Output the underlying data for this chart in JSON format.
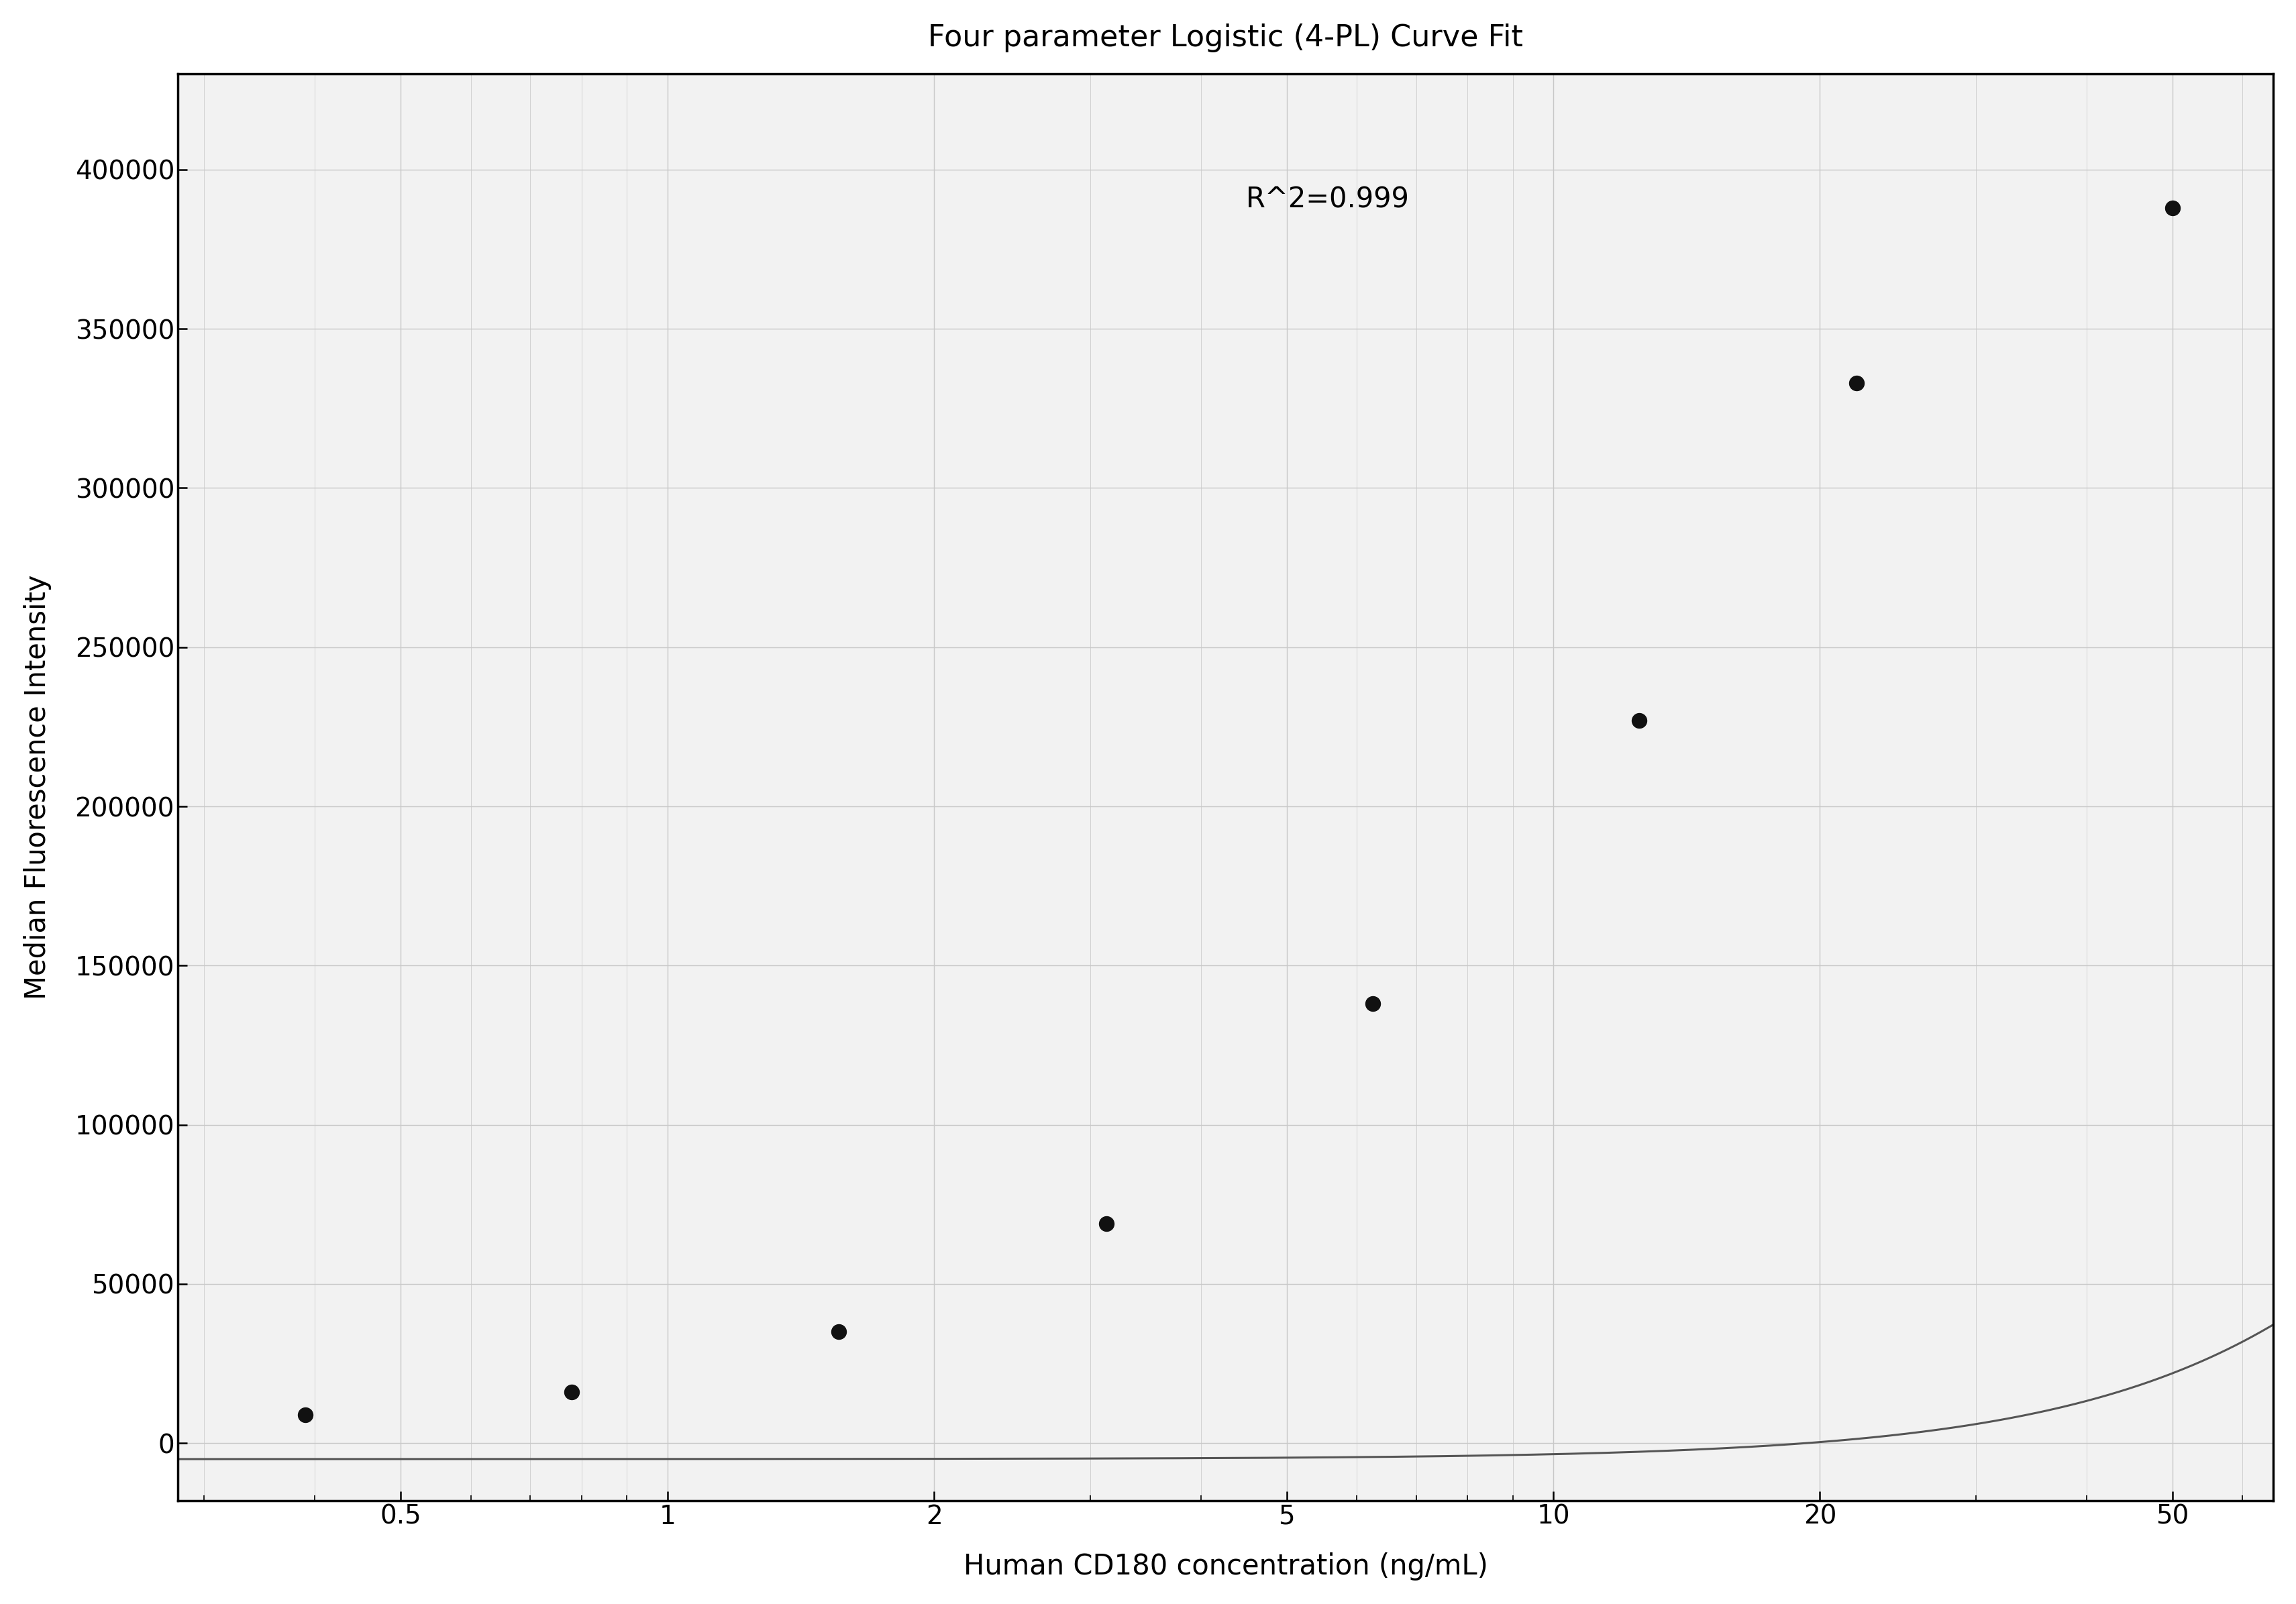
{
  "title": "Four parameter Logistic (4-PL) Curve Fit",
  "xlabel": "Human CD180 concentration (ng/mL)",
  "ylabel": "Median Fluorescence Intensity",
  "r2_text": "R^2=0.999",
  "x_data": [
    0.39,
    0.78,
    1.56,
    3.13,
    6.25,
    12.5,
    22.0,
    50.0
  ],
  "y_data": [
    9000,
    16000,
    35000,
    69000,
    138000,
    227000,
    333000,
    388000
  ],
  "xlim": [
    0.28,
    65
  ],
  "ylim": [
    -18000,
    430000
  ],
  "yticks": [
    0,
    50000,
    100000,
    150000,
    200000,
    250000,
    300000,
    350000,
    400000
  ],
  "xticks": [
    0.5,
    1,
    2,
    5,
    10,
    20,
    50
  ],
  "xtick_labels": [
    "0.5",
    "1",
    "2",
    "5",
    "10",
    "20",
    "50"
  ],
  "r2_pos_x": 4.5,
  "r2_pos_y": 395000,
  "title_fontsize": 32,
  "label_fontsize": 30,
  "tick_fontsize": 28,
  "annotation_fontsize": 30,
  "marker_color": "#111111",
  "line_color": "#555555",
  "grid_color": "#c8c8c8",
  "background_color": "#ffffff",
  "plot_bg_color": "#f2f2f2"
}
